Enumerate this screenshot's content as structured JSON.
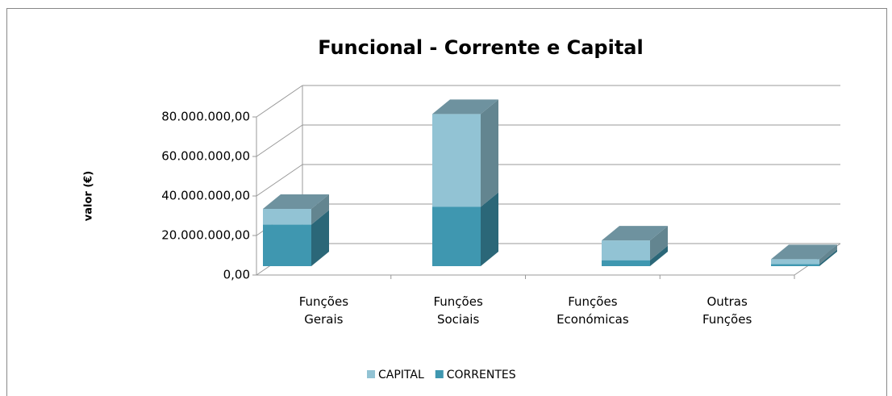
{
  "chart_data": {
    "type": "bar3d_stacked",
    "title": "Funcional - Corrente e Capital",
    "ylabel": "valor (€)",
    "categories": [
      "Funções Gerais",
      "Funções Sociais",
      "Funções Económicas",
      "Outras Funções"
    ],
    "series": [
      {
        "name": "CORRENTES",
        "color": "#3f97b0",
        "values": [
          21000000,
          30000000,
          3000000,
          1000000
        ]
      },
      {
        "name": "CAPITAL",
        "color": "#92c3d4",
        "values": [
          8000000,
          47000000,
          10000000,
          2500000
        ]
      }
    ],
    "ylim": [
      0,
      80000000
    ],
    "yticks": [
      {
        "value": 0,
        "label": "0,00"
      },
      {
        "value": 20000000,
        "label": "20.000.000,00"
      },
      {
        "value": 40000000,
        "label": "40.000.000,00"
      },
      {
        "value": 60000000,
        "label": "60.000.000,00"
      },
      {
        "value": 80000000,
        "label": "80.000.000,00"
      }
    ],
    "grid": true,
    "legend": "bottom"
  }
}
